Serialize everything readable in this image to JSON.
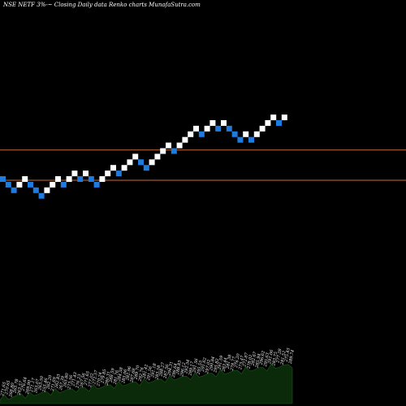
{
  "header": {
    "title": "NSE NETF 3%-~  Closing Daily data  Renko  charts MunafaSutra.com"
  },
  "colors": {
    "background": "#000000",
    "up_brick": "#ffffff",
    "down_brick": "#1e7be0",
    "resistance_line": "#c86b3c",
    "volume_fill": "#0a2a0a",
    "volume_stroke": "#1f5a1f",
    "label_text": "#ffffff"
  },
  "chart_data": {
    "type": "renko",
    "brick_size_percent": 3,
    "bricks": [
      {
        "level": 0,
        "dir": "down"
      },
      {
        "level": -1,
        "dir": "down"
      },
      {
        "level": -2,
        "dir": "down"
      },
      {
        "level": -1,
        "dir": "up"
      },
      {
        "level": 0,
        "dir": "up"
      },
      {
        "level": -1,
        "dir": "down"
      },
      {
        "level": -2,
        "dir": "down"
      },
      {
        "level": -3,
        "dir": "down"
      },
      {
        "level": -2,
        "dir": "up"
      },
      {
        "level": -1,
        "dir": "up"
      },
      {
        "level": 0,
        "dir": "up"
      },
      {
        "level": -1,
        "dir": "down"
      },
      {
        "level": 0,
        "dir": "up"
      },
      {
        "level": 1,
        "dir": "up"
      },
      {
        "level": 0,
        "dir": "down"
      },
      {
        "level": 1,
        "dir": "up"
      },
      {
        "level": 0,
        "dir": "down"
      },
      {
        "level": -1,
        "dir": "down"
      },
      {
        "level": 0,
        "dir": "up"
      },
      {
        "level": 1,
        "dir": "up"
      },
      {
        "level": 2,
        "dir": "up"
      },
      {
        "level": 1,
        "dir": "down"
      },
      {
        "level": 2,
        "dir": "up"
      },
      {
        "level": 3,
        "dir": "up"
      },
      {
        "level": 4,
        "dir": "up"
      },
      {
        "level": 3,
        "dir": "down"
      },
      {
        "level": 2,
        "dir": "down"
      },
      {
        "level": 3,
        "dir": "up"
      },
      {
        "level": 4,
        "dir": "up"
      },
      {
        "level": 5,
        "dir": "up"
      },
      {
        "level": 6,
        "dir": "up"
      },
      {
        "level": 5,
        "dir": "down"
      },
      {
        "level": 6,
        "dir": "up"
      },
      {
        "level": 7,
        "dir": "up"
      },
      {
        "level": 8,
        "dir": "up"
      },
      {
        "level": 9,
        "dir": "up"
      },
      {
        "level": 8,
        "dir": "down"
      },
      {
        "level": 9,
        "dir": "up"
      },
      {
        "level": 10,
        "dir": "up"
      },
      {
        "level": 9,
        "dir": "down"
      },
      {
        "level": 10,
        "dir": "up"
      },
      {
        "level": 9,
        "dir": "down"
      },
      {
        "level": 8,
        "dir": "down"
      },
      {
        "level": 7,
        "dir": "down"
      },
      {
        "level": 8,
        "dir": "up"
      },
      {
        "level": 7,
        "dir": "down"
      },
      {
        "level": 8,
        "dir": "up"
      },
      {
        "level": 9,
        "dir": "up"
      },
      {
        "level": 10,
        "dir": "up"
      },
      {
        "level": 11,
        "dir": "up"
      },
      {
        "level": 10,
        "dir": "down"
      },
      {
        "level": 11,
        "dir": "up"
      }
    ],
    "reference_levels": [
      8,
      0
    ],
    "volume_labels": [
      "271.65",
      "270.65",
      "268.80",
      "265.78",
      "263.57",
      "276.64",
      "269.90",
      "271.17",
      "265.07",
      "263.50",
      "255.46",
      "262.20",
      "271.69",
      "262.83",
      "267.39",
      "265.80",
      "273.56",
      "271.43",
      "276.23",
      "267.56",
      "271.65",
      "277.02",
      "272.57",
      "270.24",
      "279.85",
      "280.31",
      "288.59",
      "281.76",
      "284.58",
      "285.06",
      "282.96",
      "287.68",
      "289.70",
      "292.76",
      "281.42",
      "291.56",
      "291.18",
      "283.58",
      "288.27",
      "287.56",
      "294.31",
      "296.64",
      "288.83",
      "296.12",
      "292.54",
      "289.17",
      "291.56",
      "295.55",
      "291.62",
      "297.02",
      "290.84",
      "295.82",
      "291.59",
      "283.44",
      "281.38",
      "278.77",
      "276.20",
      "275.47",
      "272.87",
      "278.02",
      "282.67",
      "285.94",
      "296.62",
      "295.63",
      "291.06",
      "283.75",
      "277.28",
      "281.52",
      "275.45",
      "289.74"
    ],
    "volume_profile": [
      0.12,
      0.15,
      0.1,
      0.18,
      0.14,
      0.22,
      0.16,
      0.2,
      0.18,
      0.24,
      0.2,
      0.26,
      0.22,
      0.28,
      0.24,
      0.3,
      0.26,
      0.32,
      0.28,
      0.3,
      0.34,
      0.3,
      0.36,
      0.32,
      0.38,
      0.34,
      0.4,
      0.36,
      0.42,
      0.38,
      0.44,
      0.4,
      0.46,
      0.42,
      0.48,
      0.44,
      0.5,
      0.46,
      0.52,
      0.48,
      0.54,
      0.5,
      0.56,
      0.52,
      0.58,
      0.54,
      0.6,
      0.56,
      0.62,
      0.58,
      0.64,
      0.6,
      0.66,
      0.62,
      0.68,
      0.64,
      0.7,
      0.66,
      0.72,
      0.68,
      0.74,
      0.7,
      0.76,
      0.72,
      0.78,
      0.74,
      0.8,
      0.76,
      0.82,
      0.78
    ]
  }
}
